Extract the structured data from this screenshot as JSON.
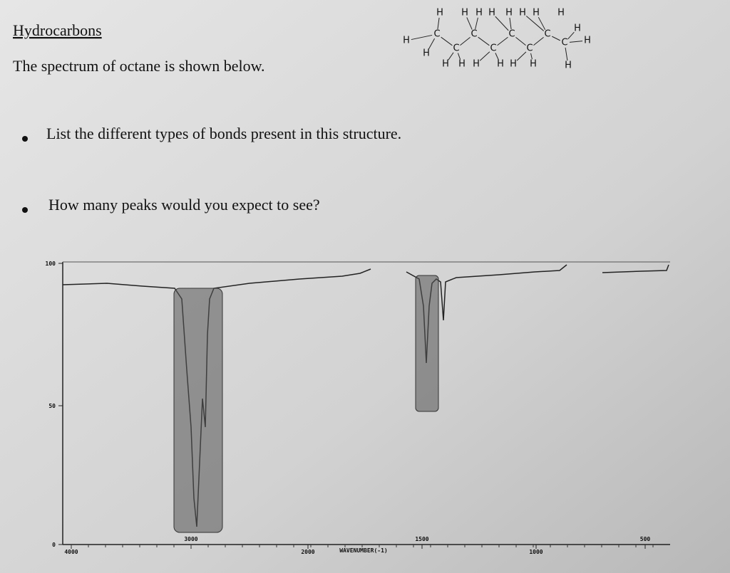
{
  "header": {
    "title": "Hydrocarbons",
    "subtitle": "The spectrum of octane is shown below."
  },
  "questions": [
    "List the different types of bonds present in this structure.",
    "How many peaks would you expect to see?"
  ],
  "molecule": {
    "atoms": [
      "H",
      "H",
      "H",
      "H",
      "H",
      "H",
      "H",
      "H",
      "H",
      "H",
      "C",
      "C",
      "C",
      "C",
      "C",
      "C",
      "C",
      "C",
      "H",
      "H",
      "H",
      "H",
      "H",
      "H",
      "H",
      "H",
      "H"
    ]
  },
  "spectrum": {
    "y_tick_labels": [
      "100",
      "50",
      "0"
    ],
    "x_tick_labels": [
      "4000",
      "3000",
      "2000",
      "1500",
      "1000",
      "500"
    ],
    "x_label": "WAVENUMBER(-1)"
  }
}
